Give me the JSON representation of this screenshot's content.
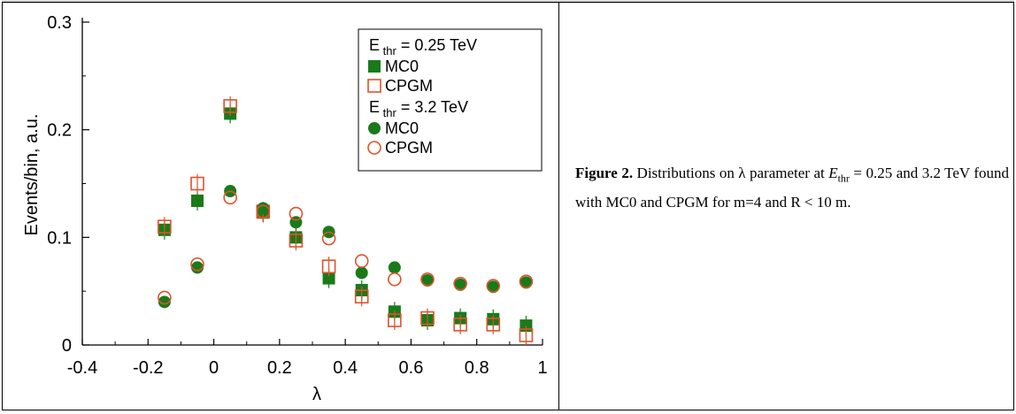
{
  "caption": {
    "label": "Figure 2.",
    "text_1": " Distributions on λ parameter at ",
    "e_var": "E",
    "e_sub": "thr",
    "text_2": " = 0.25 and 3.2 TeV found with MC0 and CPGM for m=4 and R < 10 m."
  },
  "chart_data": {
    "type": "scatter",
    "xlabel": "λ",
    "ylabel": "Events/bin, a.u.",
    "xlim": [
      -0.4,
      1.0
    ],
    "ylim": [
      0,
      0.3
    ],
    "xticks": [
      "-0.4",
      "-0.2",
      "0",
      "0.2",
      "0.4",
      "0.6",
      "0.8",
      "1"
    ],
    "yticks": [
      "0",
      "0.1",
      "0.2",
      "0.3"
    ],
    "x": [
      -0.15,
      -0.05,
      0.05,
      0.15,
      0.25,
      0.35,
      0.45,
      0.55,
      0.65,
      0.75,
      0.85,
      0.95
    ],
    "legend_groups": [
      {
        "header": "E",
        "header_sub": "thr",
        "header_value": " = 0.25 TeV"
      },
      {
        "header": "E",
        "header_sub": "thr",
        "header_value": " = 3.2 TeV"
      }
    ],
    "series": [
      {
        "name": "MC0",
        "group": 0,
        "marker": "filled-square",
        "color": "#1a7a1a",
        "values": [
          0.107,
          0.134,
          0.215,
          0.123,
          0.1,
          0.062,
          0.051,
          0.031,
          0.023,
          0.025,
          0.024,
          0.018
        ]
      },
      {
        "name": "CPGM",
        "group": 0,
        "marker": "open-square",
        "color": "#e0522c",
        "values": [
          0.11,
          0.15,
          0.222,
          0.124,
          0.097,
          0.073,
          0.045,
          0.023,
          0.025,
          0.019,
          0.019,
          0.009
        ]
      },
      {
        "name": "MC0",
        "group": 1,
        "marker": "filled-circle",
        "color": "#1a7a1a",
        "values": [
          0.04,
          0.072,
          0.143,
          0.127,
          0.114,
          0.105,
          0.067,
          0.072,
          0.06,
          0.056,
          0.054,
          0.058
        ]
      },
      {
        "name": "CPGM",
        "group": 1,
        "marker": "open-circle",
        "color": "#e0522c",
        "values": [
          0.044,
          0.075,
          0.137,
          0.124,
          0.122,
          0.099,
          0.078,
          0.061,
          0.061,
          0.057,
          0.055,
          0.059
        ]
      }
    ],
    "legend_position": "top-right",
    "grid": false
  }
}
